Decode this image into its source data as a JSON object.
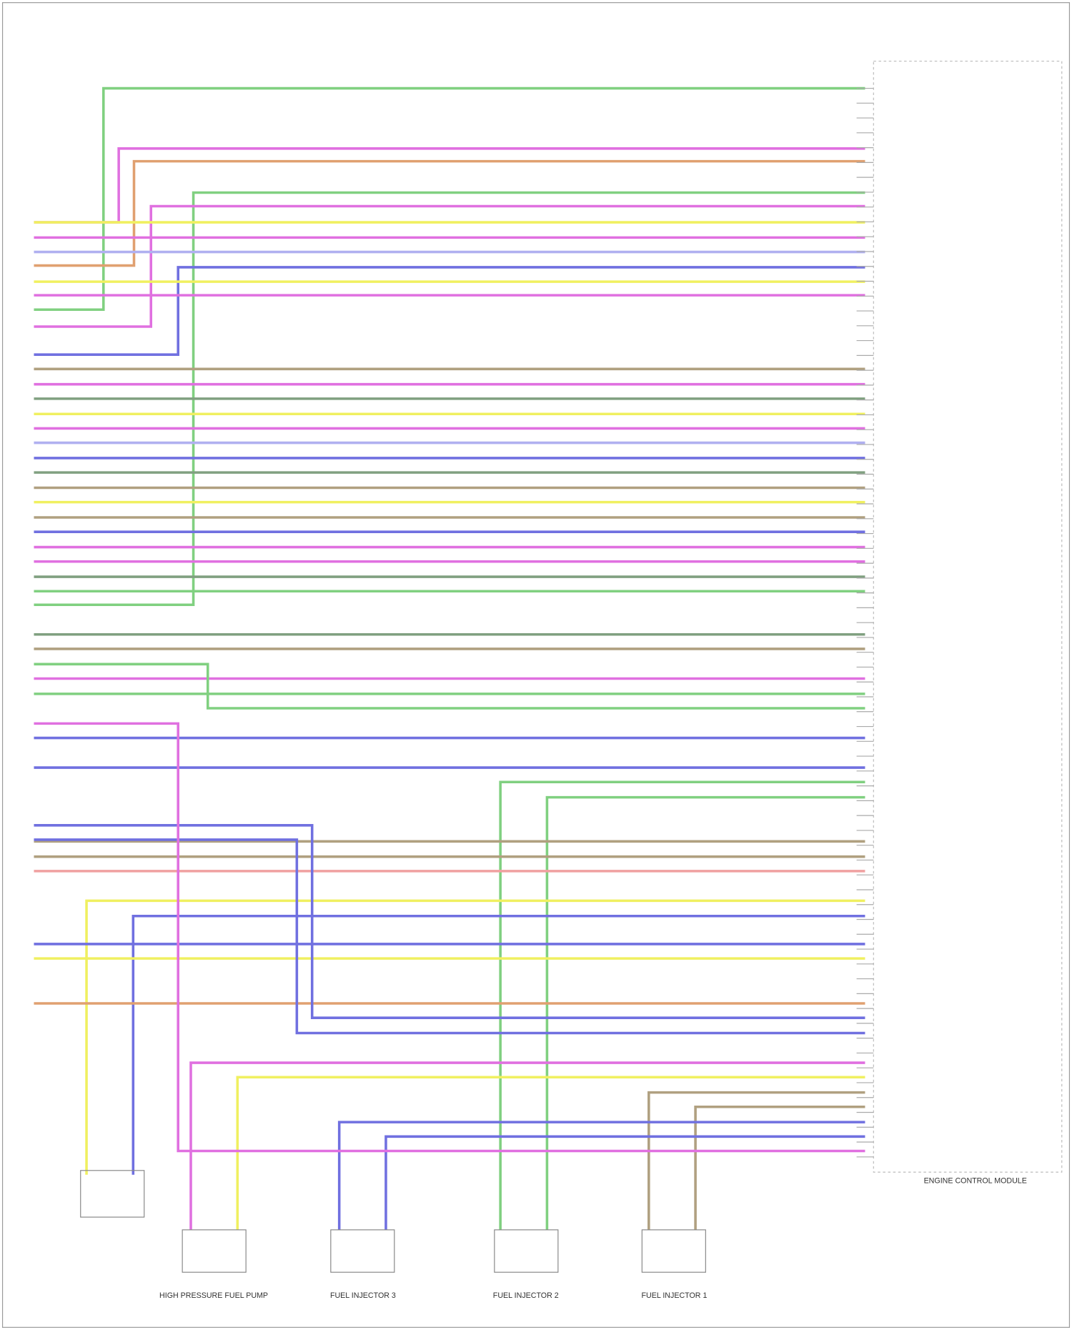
{
  "module": {
    "label": "ENGINE CONTROL MODULE"
  },
  "components": [
    {
      "label": "HIGH PRESSURE FUEL PUMP"
    },
    {
      "label": "FUEL INJECTOR 3"
    },
    {
      "label": "FUEL INJECTOR 2"
    },
    {
      "label": "FUEL INJECTOR 1"
    }
  ]
}
